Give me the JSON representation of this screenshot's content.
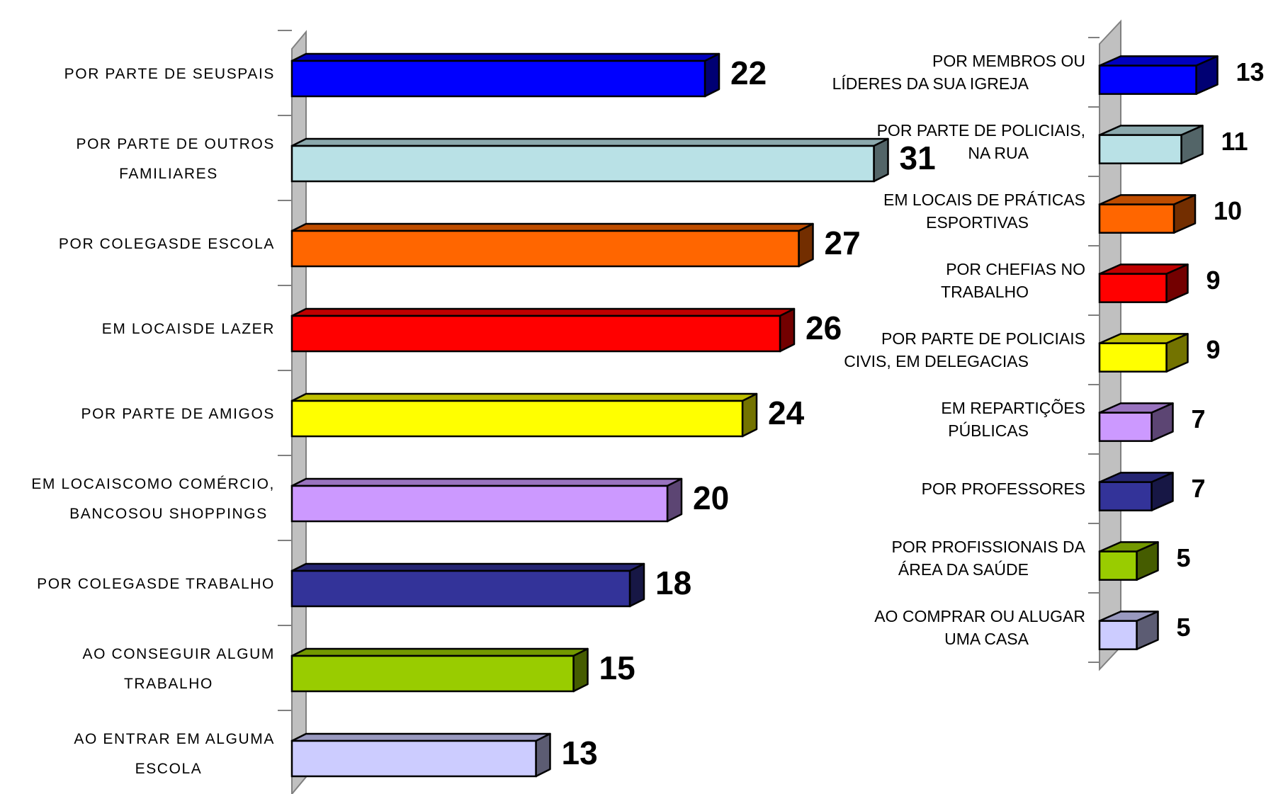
{
  "chart_data": [
    {
      "type": "bar",
      "orientation": "horizontal",
      "style": "3d",
      "title": "",
      "xlabel": "",
      "ylabel": "",
      "xlim": [
        0,
        31
      ],
      "grid": false,
      "legend": "none",
      "categories": [
        [
          "POR PARTE DE SEUSPAIS"
        ],
        [
          "POR PARTE DE OUTROS",
          "FAMILIARES"
        ],
        [
          "POR COLEGASDE ESCOLA"
        ],
        [
          "EM LOCAISDE LAZER"
        ],
        [
          "POR PARTE DE AMIGOS"
        ],
        [
          "EM LOCAISCOMO COMÉRCIO,",
          "BANCOSOU SHOPPINGS"
        ],
        [
          "POR COLEGASDE TRABALHO"
        ],
        [
          "AO CONSEGUIR ALGUM",
          "TRABALHO"
        ],
        [
          "AO ENTRAR EM ALGUMA",
          "ESCOLA"
        ]
      ],
      "values": [
        22,
        31,
        27,
        26,
        24,
        20,
        18,
        15,
        13
      ],
      "value_labels": [
        "22",
        "31",
        "27",
        "26",
        "24",
        "20",
        "18",
        "15",
        "13"
      ],
      "colors": [
        "#0000ff",
        "#b9e1e6",
        "#ff6600",
        "#ff0000",
        "#ffff00",
        "#cc99ff",
        "#333399",
        "#99cc00",
        "#ccccff"
      ]
    },
    {
      "type": "bar",
      "orientation": "horizontal",
      "style": "3d",
      "title": "",
      "xlabel": "",
      "ylabel": "",
      "xlim": [
        0,
        13
      ],
      "grid": false,
      "legend": "none",
      "categories": [
        [
          "POR MEMBROS OU",
          "LÍDERES DA SUA IGREJA"
        ],
        [
          "POR PARTE DE POLICIAIS,",
          "NA RUA"
        ],
        [
          "EM LOCAIS DE PRÁTICAS",
          "ESPORTIVAS"
        ],
        [
          "POR CHEFIAS NO",
          "TRABALHO"
        ],
        [
          "POR PARTE DE POLICIAIS",
          "CIVIS, EM DELEGACIAS"
        ],
        [
          "EM REPARTIÇÕES",
          "PÚBLICAS"
        ],
        [
          "POR PROFESSORES"
        ],
        [
          "POR PROFISSIONAIS DA",
          "ÁREA DA SAÚDE"
        ],
        [
          "AO COMPRAR OU ALUGAR",
          "UMA CASA"
        ]
      ],
      "values": [
        13,
        11,
        10,
        9,
        9,
        7,
        7,
        5,
        5
      ],
      "value_labels": [
        "13",
        "11",
        "10",
        "9",
        "9",
        "7",
        "7",
        "5",
        "5"
      ],
      "colors": [
        "#0000ff",
        "#b9e1e6",
        "#ff6600",
        "#ff0000",
        "#ffff00",
        "#cc99ff",
        "#333399",
        "#99cc00",
        "#ccccff"
      ]
    }
  ]
}
